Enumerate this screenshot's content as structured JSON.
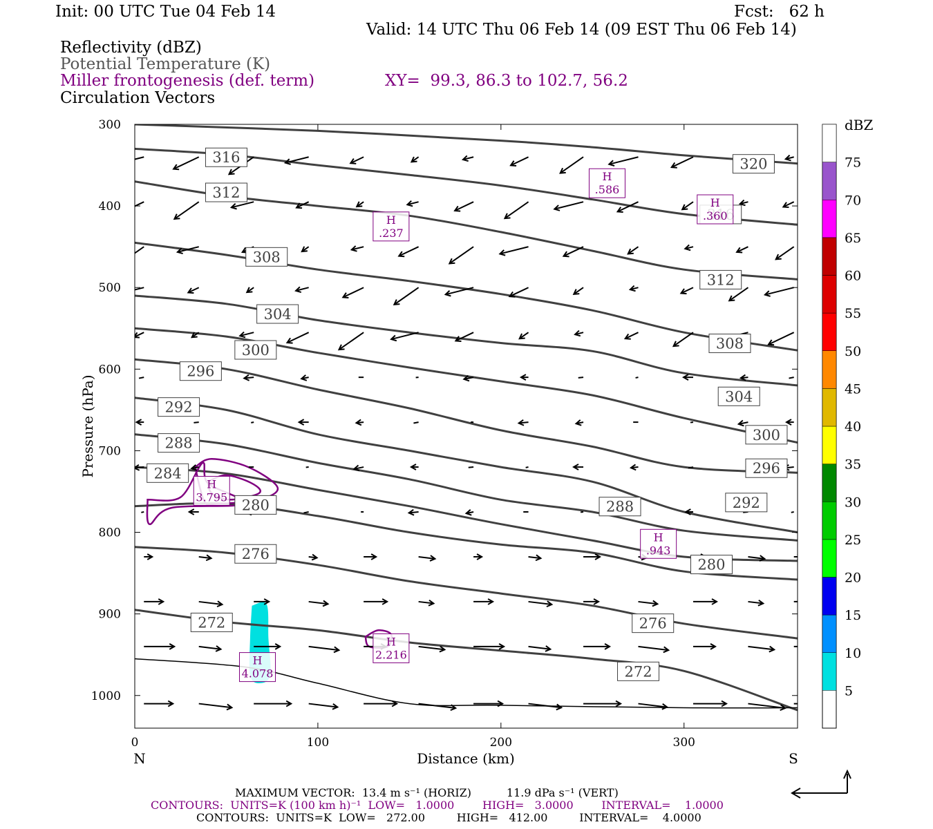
{
  "header": {
    "init": "Init: 00 UTC Tue 04 Feb 14",
    "fcst": "Fcst:   62 h",
    "valid": "Valid: 14 UTC Thu 06 Feb 14 (09 EST Thu 06 Feb 14)",
    "field1": "Reflectivity (dBZ)",
    "field2": "Potential Temperature (K)",
    "field3": "Miller frontogenesis (def. term)",
    "xy": "XY=  99.3, 86.3 to 102.7, 56.2",
    "field4": "Circulation Vectors"
  },
  "axes": {
    "ylabel": "Pressure (hPa)",
    "xlabel": "Distance (km)",
    "left_end": "N",
    "right_end": "S"
  },
  "colorbar": {
    "unit": "dBZ",
    "levels": [
      5,
      10,
      15,
      20,
      25,
      30,
      35,
      40,
      45,
      50,
      55,
      60,
      65,
      70,
      75
    ],
    "colors": [
      "#00e0e0",
      "#0090ff",
      "#0000f0",
      "#00ff00",
      "#00cc00",
      "#008800",
      "#ffff00",
      "#e0b800",
      "#ff8800",
      "#ff0000",
      "#dd0000",
      "#c00000",
      "#ff00ff",
      "#9955cc",
      "#ffffff"
    ]
  },
  "footer": {
    "line1": "MAXIMUM VECTOR:  13.4 m s⁻¹ (HORIZ)          11.9 dPa s⁻¹ (VERT)",
    "line2": "CONTOURS:  UNITS=K (100 km h)⁻¹  LOW=   1.0000        HIGH=   3.0000        INTERVAL=    1.0000",
    "line3": "CONTOURS:  UNITS=K  LOW=   272.00         HIGH=   412.00         INTERVAL=    4.0000"
  },
  "chart_data": {
    "type": "cross-section",
    "x": {
      "label": "Distance (km)",
      "range": [
        0,
        362
      ],
      "ticks": [
        0,
        100,
        200,
        300
      ]
    },
    "y": {
      "label": "Pressure (hPa)",
      "range": [
        1040,
        300
      ],
      "ticks": [
        300,
        400,
        500,
        600,
        700,
        800,
        900,
        1000
      ]
    },
    "theta_contours": [
      {
        "level": 320,
        "points": [
          [
            0,
            300
          ],
          [
            100,
            308
          ],
          [
            200,
            320
          ],
          [
            250,
            328
          ],
          [
            300,
            338
          ],
          [
            362,
            348
          ]
        ],
        "labels": [
          [
            338,
            348
          ]
        ]
      },
      {
        "level": 316,
        "points": [
          [
            0,
            330
          ],
          [
            50,
            337
          ],
          [
            100,
            350
          ],
          [
            150,
            362
          ],
          [
            200,
            375
          ],
          [
            250,
            392
          ],
          [
            300,
            410
          ],
          [
            362,
            423
          ]
        ],
        "labels": [
          [
            50,
            340
          ],
          [
            320,
            410
          ]
        ]
      },
      {
        "level": 312,
        "points": [
          [
            0,
            370
          ],
          [
            50,
            388
          ],
          [
            100,
            400
          ],
          [
            150,
            412
          ],
          [
            200,
            432
          ],
          [
            250,
            455
          ],
          [
            300,
            478
          ],
          [
            362,
            490
          ]
        ],
        "labels": [
          [
            50,
            383
          ],
          [
            320,
            490
          ]
        ]
      },
      {
        "level": 308,
        "points": [
          [
            0,
            445
          ],
          [
            50,
            460
          ],
          [
            100,
            478
          ],
          [
            150,
            492
          ],
          [
            200,
            508
          ],
          [
            250,
            528
          ],
          [
            300,
            555
          ],
          [
            362,
            577
          ]
        ],
        "labels": [
          [
            72,
            462
          ],
          [
            325,
            568
          ]
        ]
      },
      {
        "level": 304,
        "points": [
          [
            0,
            510
          ],
          [
            50,
            520
          ],
          [
            100,
            540
          ],
          [
            150,
            555
          ],
          [
            200,
            568
          ],
          [
            250,
            578
          ],
          [
            300,
            605
          ],
          [
            362,
            620
          ]
        ],
        "labels": [
          [
            78,
            532
          ],
          [
            330,
            633
          ]
        ]
      },
      {
        "level": 300,
        "points": [
          [
            0,
            550
          ],
          [
            50,
            560
          ],
          [
            100,
            580
          ],
          [
            150,
            598
          ],
          [
            200,
            615
          ],
          [
            250,
            632
          ],
          [
            300,
            660
          ],
          [
            362,
            690
          ]
        ],
        "labels": [
          [
            66,
            576
          ],
          [
            345,
            680
          ]
        ]
      },
      {
        "level": 296,
        "points": [
          [
            0,
            588
          ],
          [
            50,
            600
          ],
          [
            100,
            625
          ],
          [
            150,
            648
          ],
          [
            200,
            675
          ],
          [
            250,
            695
          ],
          [
            300,
            720
          ],
          [
            362,
            727
          ]
        ],
        "labels": [
          [
            36,
            602
          ],
          [
            345,
            721
          ]
        ]
      },
      {
        "level": 292,
        "points": [
          [
            0,
            635
          ],
          [
            50,
            650
          ],
          [
            100,
            680
          ],
          [
            150,
            700
          ],
          [
            200,
            720
          ],
          [
            250,
            738
          ],
          [
            300,
            775
          ],
          [
            362,
            800
          ]
        ],
        "labels": [
          [
            24,
            646
          ],
          [
            334,
            763
          ]
        ]
      },
      {
        "level": 288,
        "points": [
          [
            0,
            680
          ],
          [
            50,
            692
          ],
          [
            100,
            715
          ],
          [
            150,
            735
          ],
          [
            200,
            760
          ],
          [
            250,
            775
          ],
          [
            300,
            798
          ],
          [
            362,
            810
          ]
        ],
        "labels": [
          [
            24,
            690
          ],
          [
            265,
            768
          ]
        ]
      },
      {
        "level": 284,
        "points": [
          [
            0,
            720
          ],
          [
            50,
            728
          ],
          [
            100,
            748
          ],
          [
            150,
            768
          ],
          [
            200,
            790
          ],
          [
            250,
            810
          ],
          [
            300,
            830
          ],
          [
            362,
            835
          ]
        ],
        "labels": [
          [
            18,
            727
          ]
        ]
      },
      {
        "level": 280,
        "points": [
          [
            0,
            768
          ],
          [
            50,
            765
          ],
          [
            100,
            780
          ],
          [
            150,
            800
          ],
          [
            200,
            815
          ],
          [
            250,
            825
          ],
          [
            300,
            848
          ],
          [
            362,
            858
          ]
        ],
        "labels": [
          [
            66,
            766
          ],
          [
            315,
            839
          ]
        ]
      },
      {
        "level": 276,
        "points": [
          [
            0,
            818
          ],
          [
            50,
            825
          ],
          [
            100,
            840
          ],
          [
            150,
            860
          ],
          [
            200,
            875
          ],
          [
            250,
            890
          ],
          [
            300,
            912
          ],
          [
            362,
            930
          ]
        ],
        "labels": [
          [
            66,
            826
          ],
          [
            283,
            911
          ]
        ]
      },
      {
        "level": 272,
        "points": [
          [
            0,
            895
          ],
          [
            50,
            910
          ],
          [
            100,
            920
          ],
          [
            150,
            935
          ],
          [
            200,
            945
          ],
          [
            250,
            955
          ],
          [
            300,
            970
          ],
          [
            362,
            1018
          ]
        ],
        "labels": [
          [
            42,
            910
          ],
          [
            275,
            970
          ]
        ]
      }
    ],
    "frontogenesis_maxima": [
      {
        "x": 42,
        "p": 750,
        "value": "3.795"
      },
      {
        "x": 67,
        "p": 966,
        "value": "4.078"
      },
      {
        "x": 140,
        "p": 943,
        "value": "2.216"
      },
      {
        "x": 140,
        "p": 426,
        "value": ".237"
      },
      {
        "x": 258,
        "p": 373,
        "value": ".586"
      },
      {
        "x": 317,
        "p": 405,
        "value": ".360"
      },
      {
        "x": 286,
        "p": 815,
        "value": ".943"
      }
    ],
    "vectors": {
      "rows_hpa": [
        340,
        395,
        450,
        500,
        555,
        610,
        665,
        720,
        775,
        830,
        885,
        940,
        1010
      ],
      "flow_upper": "southerly-to-northerly descending toward N",
      "flow_lower": "northerly toward S"
    }
  }
}
